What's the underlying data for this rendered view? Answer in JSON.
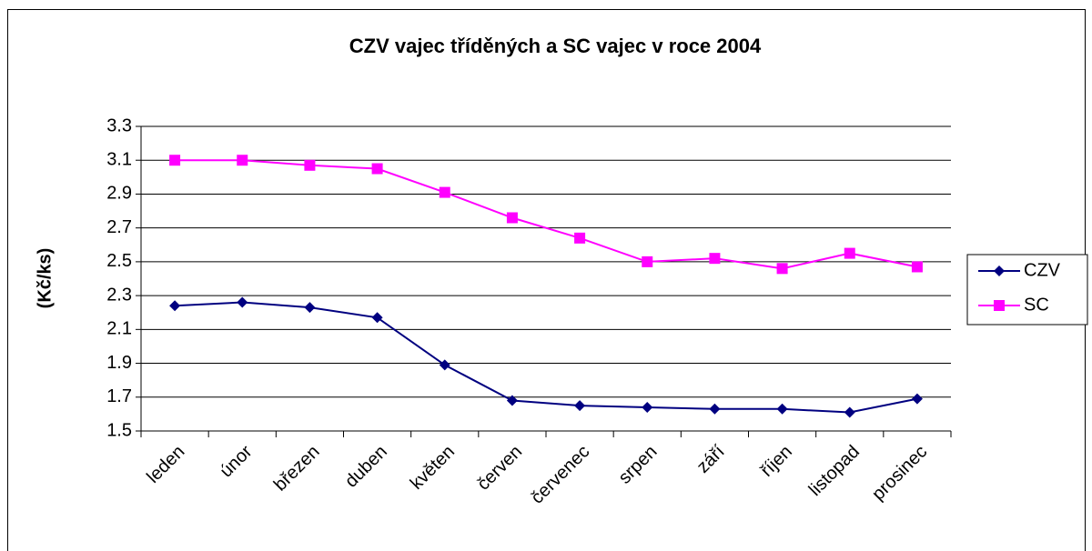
{
  "chart_data": {
    "type": "line",
    "title": "CZV vajec tříděných a SC vajec v roce 2004",
    "ylabel": "(Kč/ks)",
    "categories": [
      "leden",
      "únor",
      "březen",
      "duben",
      "květen",
      "červen",
      "červenec",
      "srpen",
      "září",
      "říjen",
      "listopad",
      "prosinec"
    ],
    "series": [
      {
        "name": "CZV",
        "color": "#000080",
        "marker": "diamond",
        "values": [
          2.24,
          2.26,
          2.23,
          2.17,
          1.89,
          1.68,
          1.65,
          1.64,
          1.63,
          1.63,
          1.61,
          1.69
        ]
      },
      {
        "name": "SC",
        "color": "#ff00ff",
        "marker": "square",
        "values": [
          3.1,
          3.1,
          3.07,
          3.05,
          2.91,
          2.76,
          2.64,
          2.5,
          2.52,
          2.46,
          2.55,
          2.47
        ]
      }
    ],
    "ylim": [
      1.5,
      3.3
    ],
    "yticks": [
      1.5,
      1.7,
      1.9,
      2.1,
      2.3,
      2.5,
      2.7,
      2.9,
      3.1,
      3.3
    ],
    "grid": true,
    "legend": "right"
  }
}
